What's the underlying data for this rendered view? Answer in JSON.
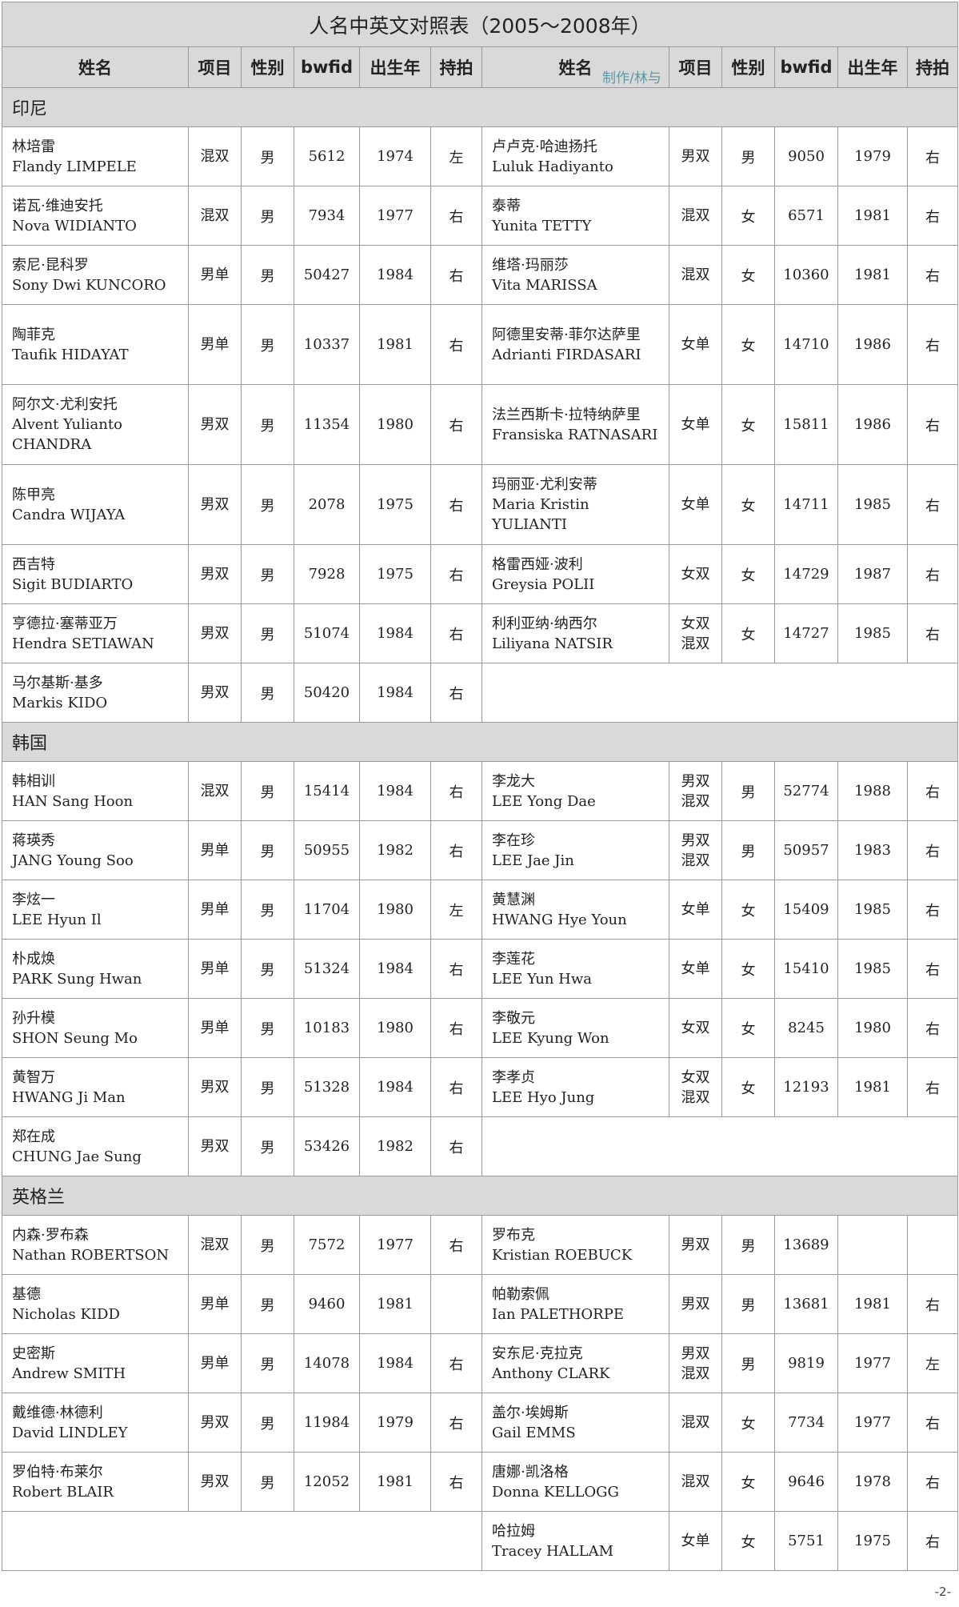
{
  "title": "人名中英文对照表（2005～2008年）",
  "watermark": "制作∕林与",
  "headers": [
    "姓名",
    "项目",
    "性别",
    "bwfid",
    "出生年",
    "持拍",
    "姓名",
    "项目",
    "性别",
    "bwfid",
    "出生年",
    "持拍"
  ],
  "page_number": "-2-",
  "sections": [
    {
      "name": "印尼",
      "rows": [
        {
          "tall": false,
          "left": {
            "zh": "林培雷",
            "en": "Flandy LIMPELE",
            "event": "混双",
            "sex": "男",
            "bwfid": "5612",
            "year": "1974",
            "hand": "左"
          },
          "right": {
            "zh": "卢卢克·哈迪扬托",
            "en": "Luluk Hadiyanto",
            "event": "男双",
            "sex": "男",
            "bwfid": "9050",
            "year": "1979",
            "hand": "右"
          }
        },
        {
          "tall": false,
          "left": {
            "zh": "诺瓦·维迪安托",
            "en": "Nova WIDIANTO",
            "event": "混双",
            "sex": "男",
            "bwfid": "7934",
            "year": "1977",
            "hand": "右"
          },
          "right": {
            "zh": "泰蒂",
            "en": "Yunita TETTY",
            "event": "混双",
            "sex": "女",
            "bwfid": "6571",
            "year": "1981",
            "hand": "右"
          }
        },
        {
          "tall": false,
          "left": {
            "zh": "索尼·昆科罗",
            "en": "Sony Dwi KUNCORO",
            "event": "男单",
            "sex": "男",
            "bwfid": "50427",
            "year": "1984",
            "hand": "右"
          },
          "right": {
            "zh": "维塔·玛丽莎",
            "en": "Vita MARISSA",
            "event": "混双",
            "sex": "女",
            "bwfid": "10360",
            "year": "1981",
            "hand": "右"
          }
        },
        {
          "tall": true,
          "left": {
            "zh": "陶菲克",
            "en": "Taufik HIDAYAT",
            "event": "男单",
            "sex": "男",
            "bwfid": "10337",
            "year": "1981",
            "hand": "右"
          },
          "right": {
            "zh": "阿德里安蒂·菲尔达萨里",
            "en": "Adrianti FIRDASARI",
            "event": "女单",
            "sex": "女",
            "bwfid": "14710",
            "year": "1986",
            "hand": "右"
          }
        },
        {
          "tall": true,
          "left": {
            "zh": "阿尔文·尤利安托",
            "en": "Alvent Yulianto CHANDRA",
            "event": "男双",
            "sex": "男",
            "bwfid": "11354",
            "year": "1980",
            "hand": "右"
          },
          "right": {
            "zh": "法兰西斯卡·拉特纳萨里",
            "en": "Fransiska RATNASARI",
            "event": "女单",
            "sex": "女",
            "bwfid": "15811",
            "year": "1986",
            "hand": "右"
          }
        },
        {
          "tall": true,
          "left": {
            "zh": "陈甲亮",
            "en": "Candra WIJAYA",
            "event": "男双",
            "sex": "男",
            "bwfid": "2078",
            "year": "1975",
            "hand": "右"
          },
          "right": {
            "zh": "玛丽亚·尤利安蒂",
            "en": "Maria Kristin YULIANTI",
            "event": "女单",
            "sex": "女",
            "bwfid": "14711",
            "year": "1985",
            "hand": "右"
          }
        },
        {
          "tall": false,
          "left": {
            "zh": "西吉特",
            "en": "Sigit BUDIARTO",
            "event": "男双",
            "sex": "男",
            "bwfid": "7928",
            "year": "1975",
            "hand": "右"
          },
          "right": {
            "zh": "格雷西娅·波利",
            "en": "Greysia POLII",
            "event": "女双",
            "sex": "女",
            "bwfid": "14729",
            "year": "1987",
            "hand": "右"
          }
        },
        {
          "tall": false,
          "left": {
            "zh": "亨德拉·塞蒂亚万",
            "en": "Hendra SETIAWAN",
            "event": "男双",
            "sex": "男",
            "bwfid": "51074",
            "year": "1984",
            "hand": "右"
          },
          "right": {
            "zh": "利利亚纳·纳西尔",
            "en": "Liliyana NATSIR",
            "event": "女双 混双",
            "sex": "女",
            "bwfid": "14727",
            "year": "1985",
            "hand": "右"
          }
        },
        {
          "tall": false,
          "left": {
            "zh": "马尔基斯·基多",
            "en": "Markis KIDO",
            "event": "男双",
            "sex": "男",
            "bwfid": "50420",
            "year": "1984",
            "hand": "右"
          },
          "right": null
        }
      ]
    },
    {
      "name": "韩国",
      "rows": [
        {
          "tall": false,
          "left": {
            "zh": "韩相训",
            "en": "HAN Sang Hoon",
            "event": "混双",
            "sex": "男",
            "bwfid": "15414",
            "year": "1984",
            "hand": "右"
          },
          "right": {
            "zh": "李龙大",
            "en": "LEE Yong Dae",
            "event": "男双 混双",
            "sex": "男",
            "bwfid": "52774",
            "year": "1988",
            "hand": "右"
          }
        },
        {
          "tall": false,
          "left": {
            "zh": "蒋瑛秀",
            "en": "JANG Young Soo",
            "event": "男单",
            "sex": "男",
            "bwfid": "50955",
            "year": "1982",
            "hand": "右"
          },
          "right": {
            "zh": "李在珍",
            "en": "LEE Jae Jin",
            "event": "男双 混双",
            "sex": "男",
            "bwfid": "50957",
            "year": "1983",
            "hand": "右"
          }
        },
        {
          "tall": false,
          "left": {
            "zh": "李炫一",
            "en": "LEE Hyun Il",
            "event": "男单",
            "sex": "男",
            "bwfid": "11704",
            "year": "1980",
            "hand": "左"
          },
          "right": {
            "zh": "黄慧渊",
            "en": "HWANG Hye Youn",
            "event": "女单",
            "sex": "女",
            "bwfid": "15409",
            "year": "1985",
            "hand": "右"
          }
        },
        {
          "tall": false,
          "left": {
            "zh": "朴成焕",
            "en": "PARK Sung Hwan",
            "event": "男单",
            "sex": "男",
            "bwfid": "51324",
            "year": "1984",
            "hand": "右"
          },
          "right": {
            "zh": "李莲花",
            "en": "LEE Yun Hwa",
            "event": "女单",
            "sex": "女",
            "bwfid": "15410",
            "year": "1985",
            "hand": "右"
          }
        },
        {
          "tall": false,
          "left": {
            "zh": "孙升模",
            "en": "SHON Seung Mo",
            "event": "男单",
            "sex": "男",
            "bwfid": "10183",
            "year": "1980",
            "hand": "右"
          },
          "right": {
            "zh": "李敬元",
            "en": "LEE Kyung Won",
            "event": "女双",
            "sex": "女",
            "bwfid": "8245",
            "year": "1980",
            "hand": "右"
          }
        },
        {
          "tall": false,
          "left": {
            "zh": "黄智万",
            "en": "HWANG Ji Man",
            "event": "男双",
            "sex": "男",
            "bwfid": "51328",
            "year": "1984",
            "hand": "右"
          },
          "right": {
            "zh": "李孝贞",
            "en": "LEE Hyo Jung",
            "event": "女双 混双",
            "sex": "女",
            "bwfid": "12193",
            "year": "1981",
            "hand": "右"
          }
        },
        {
          "tall": false,
          "left": {
            "zh": "郑在成",
            "en": "CHUNG Jae Sung",
            "event": "男双",
            "sex": "男",
            "bwfid": "53426",
            "year": "1982",
            "hand": "右"
          },
          "right": null
        }
      ]
    },
    {
      "name": "英格兰",
      "rows": [
        {
          "tall": false,
          "left": {
            "zh": "内森·罗布森",
            "en": "Nathan ROBERTSON",
            "event": "混双",
            "sex": "男",
            "bwfid": "7572",
            "year": "1977",
            "hand": "右"
          },
          "right": {
            "zh": "罗布克",
            "en": "Kristian ROEBUCK",
            "event": "男双",
            "sex": "男",
            "bwfid": "13689",
            "year": "",
            "hand": ""
          }
        },
        {
          "tall": false,
          "left": {
            "zh": "基德",
            "en": "Nicholas KIDD",
            "event": "男单",
            "sex": "男",
            "bwfid": "9460",
            "year": "1981",
            "hand": ""
          },
          "right": {
            "zh": "帕勒索佩",
            "en": "Ian PALETHORPE",
            "event": "男双",
            "sex": "男",
            "bwfid": "13681",
            "year": "1981",
            "hand": "右"
          }
        },
        {
          "tall": false,
          "left": {
            "zh": "史密斯",
            "en": "Andrew SMITH",
            "event": "男单",
            "sex": "男",
            "bwfid": "14078",
            "year": "1984",
            "hand": "右"
          },
          "right": {
            "zh": "安东尼·克拉克",
            "en": "Anthony CLARK",
            "event": "男双 混双",
            "sex": "男",
            "bwfid": "9819",
            "year": "1977",
            "hand": "左"
          }
        },
        {
          "tall": false,
          "left": {
            "zh": "戴维德·林德利",
            "en": "David LINDLEY",
            "event": "男双",
            "sex": "男",
            "bwfid": "11984",
            "year": "1979",
            "hand": "右"
          },
          "right": {
            "zh": "盖尔·埃姆斯",
            "en": "Gail EMMS",
            "event": "混双",
            "sex": "女",
            "bwfid": "7734",
            "year": "1977",
            "hand": "右"
          }
        },
        {
          "tall": false,
          "left": {
            "zh": "罗伯特·布莱尔",
            "en": "Robert BLAIR",
            "event": "男双",
            "sex": "男",
            "bwfid": "12052",
            "year": "1981",
            "hand": "右"
          },
          "right": {
            "zh": "唐娜·凯洛格",
            "en": "Donna KELLOGG",
            "event": "混双",
            "sex": "女",
            "bwfid": "9646",
            "year": "1978",
            "hand": "右"
          }
        },
        {
          "tall": false,
          "left": null,
          "right": {
            "zh": "哈拉姆",
            "en": "Tracey HALLAM",
            "event": "女单",
            "sex": "女",
            "bwfid": "5751",
            "year": "1975",
            "hand": "右"
          }
        }
      ]
    }
  ]
}
